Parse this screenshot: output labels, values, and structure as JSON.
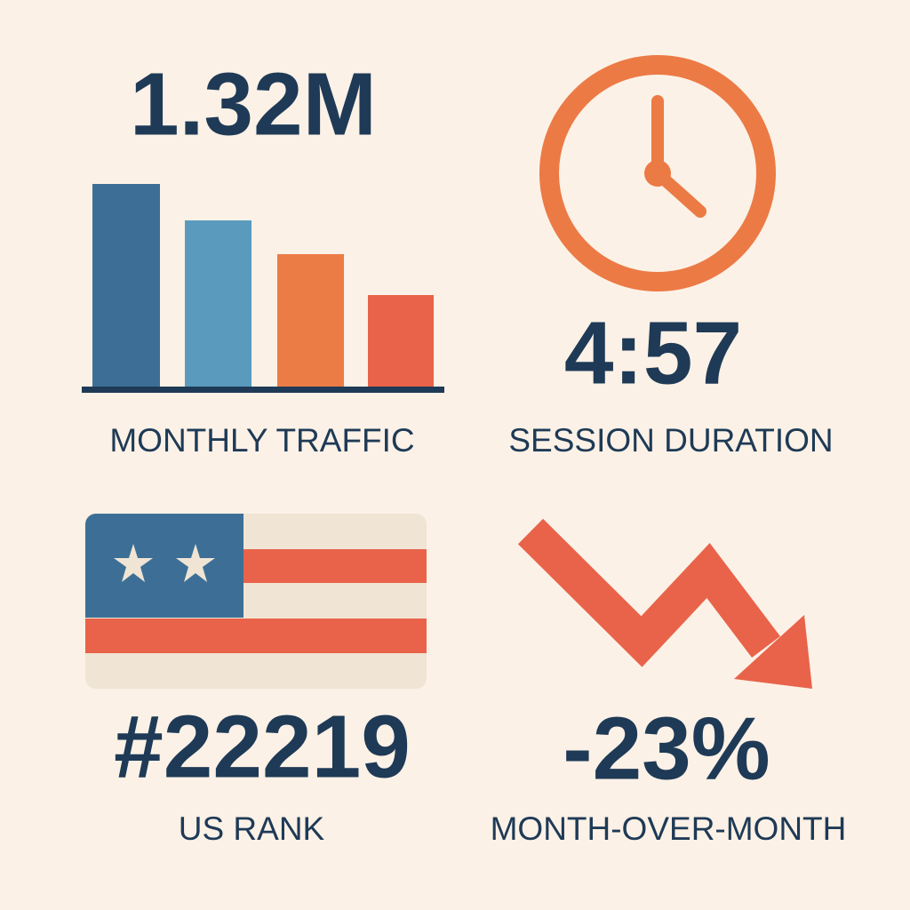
{
  "tiles": [
    {
      "value": "1.32M",
      "label": "MONTHLY TRAFFIC"
    },
    {
      "value": "4:57",
      "label": "SESSION DURATION"
    },
    {
      "value": "#22219",
      "label": "US RANK"
    },
    {
      "value": "-23%",
      "label": "MONTH-OVER-MONTH"
    }
  ]
}
